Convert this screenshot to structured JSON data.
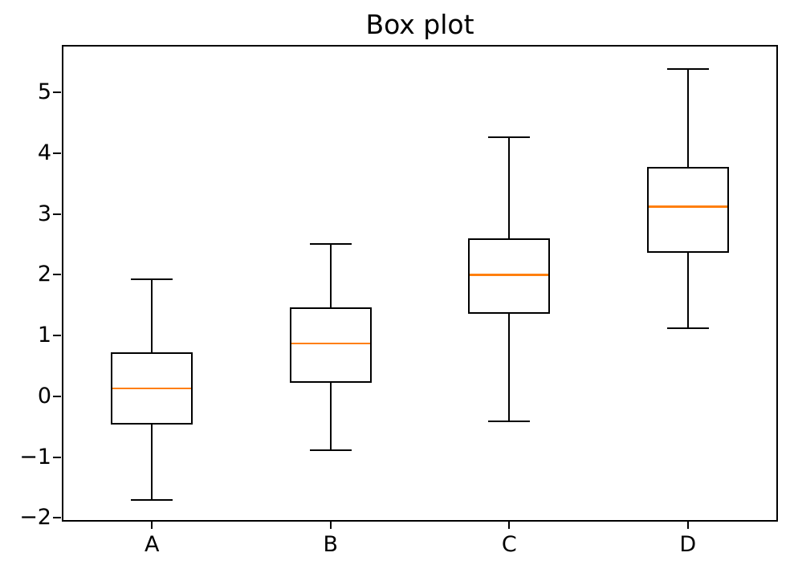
{
  "chart_data": {
    "type": "box",
    "title": "Box plot",
    "categories": [
      "A",
      "B",
      "C",
      "D"
    ],
    "positions": [
      1,
      2,
      3,
      4
    ],
    "boxes": [
      {
        "label": "A",
        "whislo": -1.7,
        "q1": -0.46,
        "med": 0.13,
        "q3": 0.73,
        "whishi": 1.93
      },
      {
        "label": "B",
        "whislo": -0.89,
        "q1": 0.22,
        "med": 0.87,
        "q3": 1.46,
        "whishi": 2.51
      },
      {
        "label": "C",
        "whislo": -0.41,
        "q1": 1.36,
        "med": 2.0,
        "q3": 2.6,
        "whishi": 4.27
      },
      {
        "label": "D",
        "whislo": 1.12,
        "q1": 2.36,
        "med": 3.12,
        "q3": 3.77,
        "whishi": 5.39
      }
    ],
    "y_ticks": [
      -2,
      -1,
      0,
      1,
      2,
      3,
      4,
      5
    ],
    "y_tick_labels": [
      "−2",
      "−1",
      "0",
      "1",
      "2",
      "3",
      "4",
      "5"
    ],
    "ylim": [
      -2.05,
      5.77
    ],
    "xlim": [
      0.5,
      4.5
    ],
    "grid": false,
    "legend": null,
    "xlabel": "",
    "ylabel": "",
    "median_color": "#ff7f0e",
    "line_color": "#000000",
    "background_color": "#ffffff"
  }
}
